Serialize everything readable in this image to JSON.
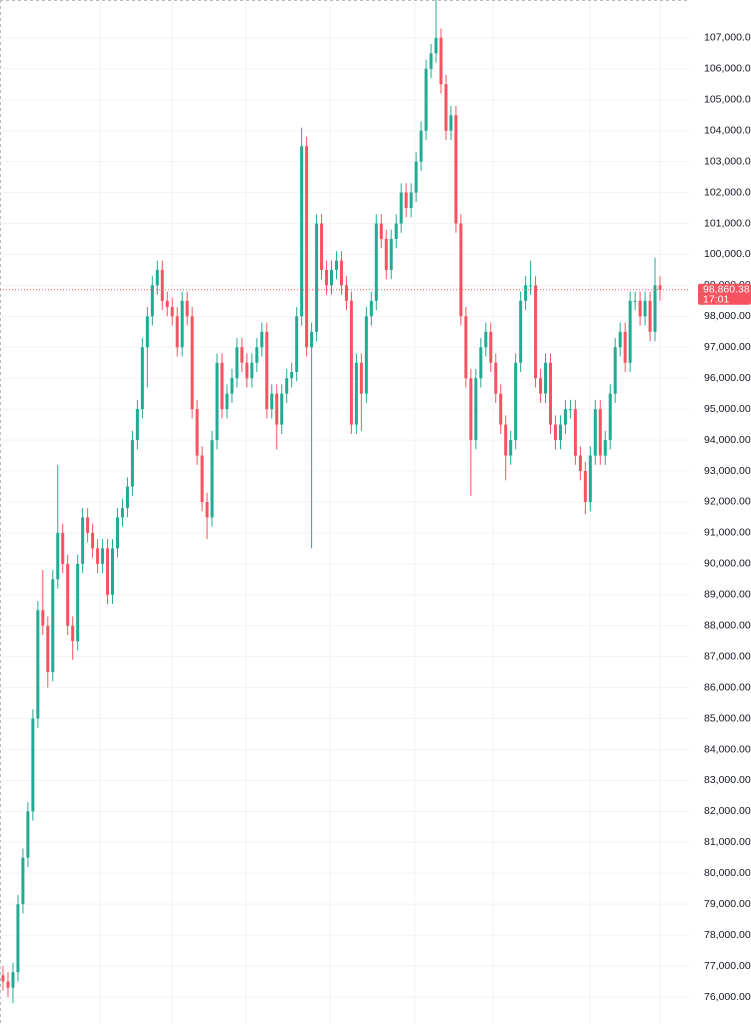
{
  "chart_data": {
    "type": "candlestick",
    "up_color": "#22ab94",
    "down_color": "#f7525f",
    "grid": true,
    "ylim": [
      75127,
      108224
    ],
    "yticks": [
      {
        "value": 76000,
        "label": "76,000.00"
      },
      {
        "value": 77000,
        "label": "77,000.00"
      },
      {
        "value": 78000,
        "label": "78,000.00"
      },
      {
        "value": 79000,
        "label": "79,000.00"
      },
      {
        "value": 80000,
        "label": "80,000.00"
      },
      {
        "value": 81000,
        "label": "81,000.00"
      },
      {
        "value": 82000,
        "label": "82,000.00"
      },
      {
        "value": 83000,
        "label": "83,000.00"
      },
      {
        "value": 84000,
        "label": "84,000.00"
      },
      {
        "value": 85000,
        "label": "85,000.00"
      },
      {
        "value": 86000,
        "label": "86,000.00"
      },
      {
        "value": 87000,
        "label": "87,000.00"
      },
      {
        "value": 88000,
        "label": "88,000.00"
      },
      {
        "value": 89000,
        "label": "89,000.00"
      },
      {
        "value": 90000,
        "label": "90,000.00"
      },
      {
        "value": 91000,
        "label": "91,000.00"
      },
      {
        "value": 92000,
        "label": "92,000.00"
      },
      {
        "value": 93000,
        "label": "93,000.00"
      },
      {
        "value": 94000,
        "label": "94,000.00"
      },
      {
        "value": 95000,
        "label": "95,000.00"
      },
      {
        "value": 96000,
        "label": "96,000.00"
      },
      {
        "value": 97000,
        "label": "97,000.00"
      },
      {
        "value": 98000,
        "label": "98,000.00"
      },
      {
        "value": 99000,
        "label": "99,000.00"
      },
      {
        "value": 100000,
        "label": "100,000.00"
      },
      {
        "value": 101000,
        "label": "101,000.00"
      },
      {
        "value": 102000,
        "label": "102,000.00"
      },
      {
        "value": 103000,
        "label": "103,000.00"
      },
      {
        "value": 104000,
        "label": "104,000.00"
      },
      {
        "value": 105000,
        "label": "105,000.00"
      },
      {
        "value": 106000,
        "label": "106,000.00"
      },
      {
        "value": 107000,
        "label": "107,000.00"
      }
    ],
    "last_price": {
      "value": 98860.38,
      "label": "98,860.38",
      "countdown": "17:01"
    },
    "series": [
      {
        "open": [
          76700,
          76500,
          76300,
          76800,
          79000,
          80500,
          82000,
          85000,
          88500,
          88000,
          86500,
          89500,
          91000,
          90000,
          88000,
          87500,
          90000,
          91500,
          91000,
          90500,
          90000,
          90500,
          89000,
          90500,
          91500,
          91800,
          92500,
          94000,
          95000,
          97000,
          98000,
          99000,
          99500,
          98500,
          98300,
          98000,
          97000,
          98500,
          98000,
          95000,
          93500,
          92000,
          91500,
          94000,
          96500,
          95000,
          95500,
          96000,
          97000,
          96500,
          96000,
          96500,
          97000,
          97500,
          95000,
          95500,
          94500,
          95500,
          96000,
          96200,
          98000,
          103500,
          97000,
          97500,
          101000,
          99500,
          99000,
          99500,
          99800,
          99000,
          98500,
          94500,
          96500,
          95500,
          98000,
          98500,
          101000,
          100500,
          99500,
          100500,
          101000,
          102000,
          101500,
          102000,
          103000,
          104000,
          106000,
          106500,
          107000,
          105500,
          104000,
          104500,
          101000,
          98000,
          96000,
          94000,
          96000,
          97000,
          97500,
          96500,
          95500,
          94500,
          93500,
          94000,
          96500,
          98500,
          99000,
          99000,
          96000,
          95500,
          96500,
          94500,
          94000,
          94500,
          95000,
          95000,
          93500,
          93000,
          92000,
          93500,
          95000,
          93500,
          94000,
          95500,
          97000,
          97500,
          96500,
          98500,
          98500,
          98000,
          98500,
          97500,
          99000
        ],
        "high": [
          77000,
          76800,
          77100,
          79300,
          80800,
          82300,
          85300,
          88800,
          89800,
          88300,
          89800,
          93200,
          91300,
          90300,
          88300,
          90300,
          91800,
          91800,
          91300,
          90800,
          90800,
          90800,
          90800,
          91800,
          92100,
          92800,
          94300,
          95300,
          97300,
          98300,
          99300,
          99800,
          99800,
          98800,
          98600,
          98300,
          98800,
          98800,
          98300,
          95300,
          93800,
          92300,
          94300,
          96800,
          96800,
          95800,
          96300,
          97300,
          97300,
          96800,
          96800,
          97300,
          97800,
          97800,
          95800,
          95800,
          95800,
          96300,
          96500,
          98300,
          104100,
          103800,
          97800,
          101300,
          101300,
          99800,
          99800,
          100100,
          100100,
          99300,
          98800,
          96800,
          96800,
          98300,
          98800,
          101300,
          101300,
          100800,
          100800,
          101300,
          102300,
          102300,
          102300,
          103300,
          104300,
          106300,
          106800,
          108240,
          107300,
          105800,
          104800,
          104800,
          101300,
          98300,
          96300,
          96300,
          97300,
          97800,
          97800,
          96800,
          95800,
          94800,
          94300,
          96800,
          98800,
          99300,
          99800,
          99300,
          96300,
          96800,
          96800,
          94800,
          94800,
          95300,
          95300,
          95300,
          93800,
          93300,
          93800,
          95300,
          95300,
          94300,
          95800,
          97300,
          97800,
          97800,
          98800,
          98800,
          98800,
          98800,
          98800,
          99900,
          99300
        ],
        "low": [
          76200,
          76000,
          75800,
          76500,
          78700,
          80200,
          81700,
          84700,
          87700,
          86000,
          86200,
          89200,
          89700,
          87700,
          86900,
          87200,
          89700,
          90700,
          90200,
          89700,
          89700,
          88700,
          88700,
          90200,
          91200,
          91500,
          92200,
          93700,
          94700,
          95700,
          97700,
          98700,
          98200,
          98000,
          97700,
          96700,
          96700,
          97700,
          94700,
          93200,
          91700,
          90800,
          91200,
          93700,
          94700,
          94700,
          95200,
          95700,
          96200,
          95700,
          95700,
          96200,
          96700,
          94700,
          94700,
          93700,
          94200,
          95200,
          95700,
          95900,
          97700,
          96700,
          90500,
          97200,
          99200,
          98700,
          98700,
          99200,
          98700,
          98200,
          94200,
          94200,
          94300,
          95200,
          97700,
          98200,
          100200,
          99200,
          99200,
          100200,
          100700,
          101200,
          101200,
          101700,
          102700,
          103700,
          105700,
          106200,
          105200,
          103700,
          103700,
          100700,
          97700,
          95700,
          92200,
          93700,
          95700,
          96700,
          96200,
          95200,
          94200,
          92700,
          93200,
          93700,
          96200,
          98200,
          98700,
          95700,
          95200,
          95200,
          94200,
          93700,
          93700,
          94200,
          94700,
          93200,
          92700,
          91600,
          91700,
          93200,
          93200,
          93200,
          93700,
          95200,
          96700,
          96200,
          96200,
          98200,
          97700,
          97700,
          97200,
          97200,
          98500
        ],
        "close": [
          76500,
          76300,
          76800,
          79000,
          80500,
          82000,
          85000,
          88500,
          88000,
          86500,
          89500,
          91000,
          90000,
          88000,
          87500,
          90000,
          91500,
          91000,
          90500,
          90000,
          90500,
          89000,
          90500,
          91500,
          91800,
          92500,
          94000,
          95000,
          97000,
          98000,
          99000,
          99500,
          98500,
          98300,
          98000,
          97000,
          98500,
          98000,
          95000,
          93500,
          92000,
          91500,
          94000,
          96500,
          95000,
          95500,
          96000,
          97000,
          96500,
          96000,
          96500,
          97000,
          97500,
          95000,
          95500,
          94500,
          95500,
          96000,
          96200,
          98000,
          103500,
          97000,
          97500,
          101000,
          99500,
          99000,
          99500,
          99800,
          99000,
          98500,
          94500,
          96500,
          95500,
          98000,
          98500,
          101000,
          100500,
          99500,
          100500,
          101000,
          102000,
          101500,
          102000,
          103000,
          104000,
          106000,
          106500,
          107000,
          105500,
          104000,
          104500,
          101000,
          98000,
          96000,
          94000,
          96000,
          97000,
          97500,
          96500,
          95500,
          94500,
          93500,
          94000,
          96500,
          98500,
          99000,
          99000,
          96000,
          95500,
          96500,
          94500,
          94000,
          94500,
          95000,
          95000,
          93500,
          93000,
          92000,
          93500,
          95000,
          93500,
          94000,
          95500,
          97000,
          97500,
          96500,
          98500,
          98500,
          98000,
          98500,
          97500,
          99000,
          98860.38
        ]
      }
    ]
  }
}
